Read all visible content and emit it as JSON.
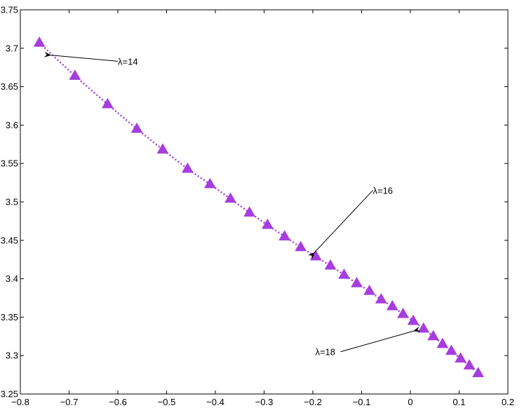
{
  "chart_data": {
    "type": "scatter",
    "xlim": [
      -0.8,
      0.2
    ],
    "ylim": [
      3.25,
      3.75
    ],
    "x_ticks": [
      -0.8,
      -0.7,
      -0.6,
      -0.5,
      -0.4,
      -0.3,
      -0.2,
      -0.1,
      0,
      0.1,
      0.2
    ],
    "x_tick_labels": [
      "−0.8",
      "−0.7",
      "−0.6",
      "−0.5",
      "−0.4",
      "−0.3",
      "−0.2",
      "−0.1",
      "0",
      "0.1",
      "0.2"
    ],
    "y_ticks": [
      3.25,
      3.3,
      3.35,
      3.4,
      3.45,
      3.5,
      3.55,
      3.6,
      3.65,
      3.7,
      3.75
    ],
    "y_tick_labels": [
      "3.25",
      "3.3",
      "3.35",
      "3.4",
      "3.45",
      "3.5",
      "3.55",
      "3.6",
      "3.65",
      "3.7",
      "3.75"
    ],
    "grid": false,
    "series": [
      {
        "marker": "triangle",
        "line_style": "dotted",
        "color": "#a63dde",
        "x": [
          -0.761,
          -0.688,
          -0.621,
          -0.561,
          -0.508,
          -0.457,
          -0.411,
          -0.369,
          -0.33,
          -0.293,
          -0.258,
          -0.225,
          -0.194,
          -0.164,
          -0.136,
          -0.11,
          -0.084,
          -0.06,
          -0.037,
          -0.015,
          0.006,
          0.027,
          0.047,
          0.066,
          0.084,
          0.103,
          0.121,
          0.139
        ],
        "y": [
          3.707,
          3.664,
          3.627,
          3.595,
          3.568,
          3.543,
          3.523,
          3.504,
          3.486,
          3.47,
          3.455,
          3.441,
          3.429,
          3.417,
          3.405,
          3.394,
          3.384,
          3.373,
          3.364,
          3.354,
          3.345,
          3.335,
          3.325,
          3.315,
          3.306,
          3.296,
          3.287,
          3.277
        ]
      }
    ],
    "annotations": [
      {
        "text": "λ=14",
        "label_x": -0.6,
        "label_y": 3.683,
        "arrow_x": -0.738,
        "arrow_y": 3.691,
        "anchor": "start"
      },
      {
        "text": "λ=16",
        "label_x": -0.077,
        "label_y": 3.515,
        "arrow_x": -0.197,
        "arrow_y": 3.434,
        "anchor": "start"
      },
      {
        "text": "λ=18",
        "label_x": -0.195,
        "label_y": 3.305,
        "arrow_x": 0.007,
        "arrow_y": 3.332,
        "anchor": "start"
      }
    ],
    "colors": {
      "axis": "#000000",
      "marker": "#a63dde"
    }
  }
}
